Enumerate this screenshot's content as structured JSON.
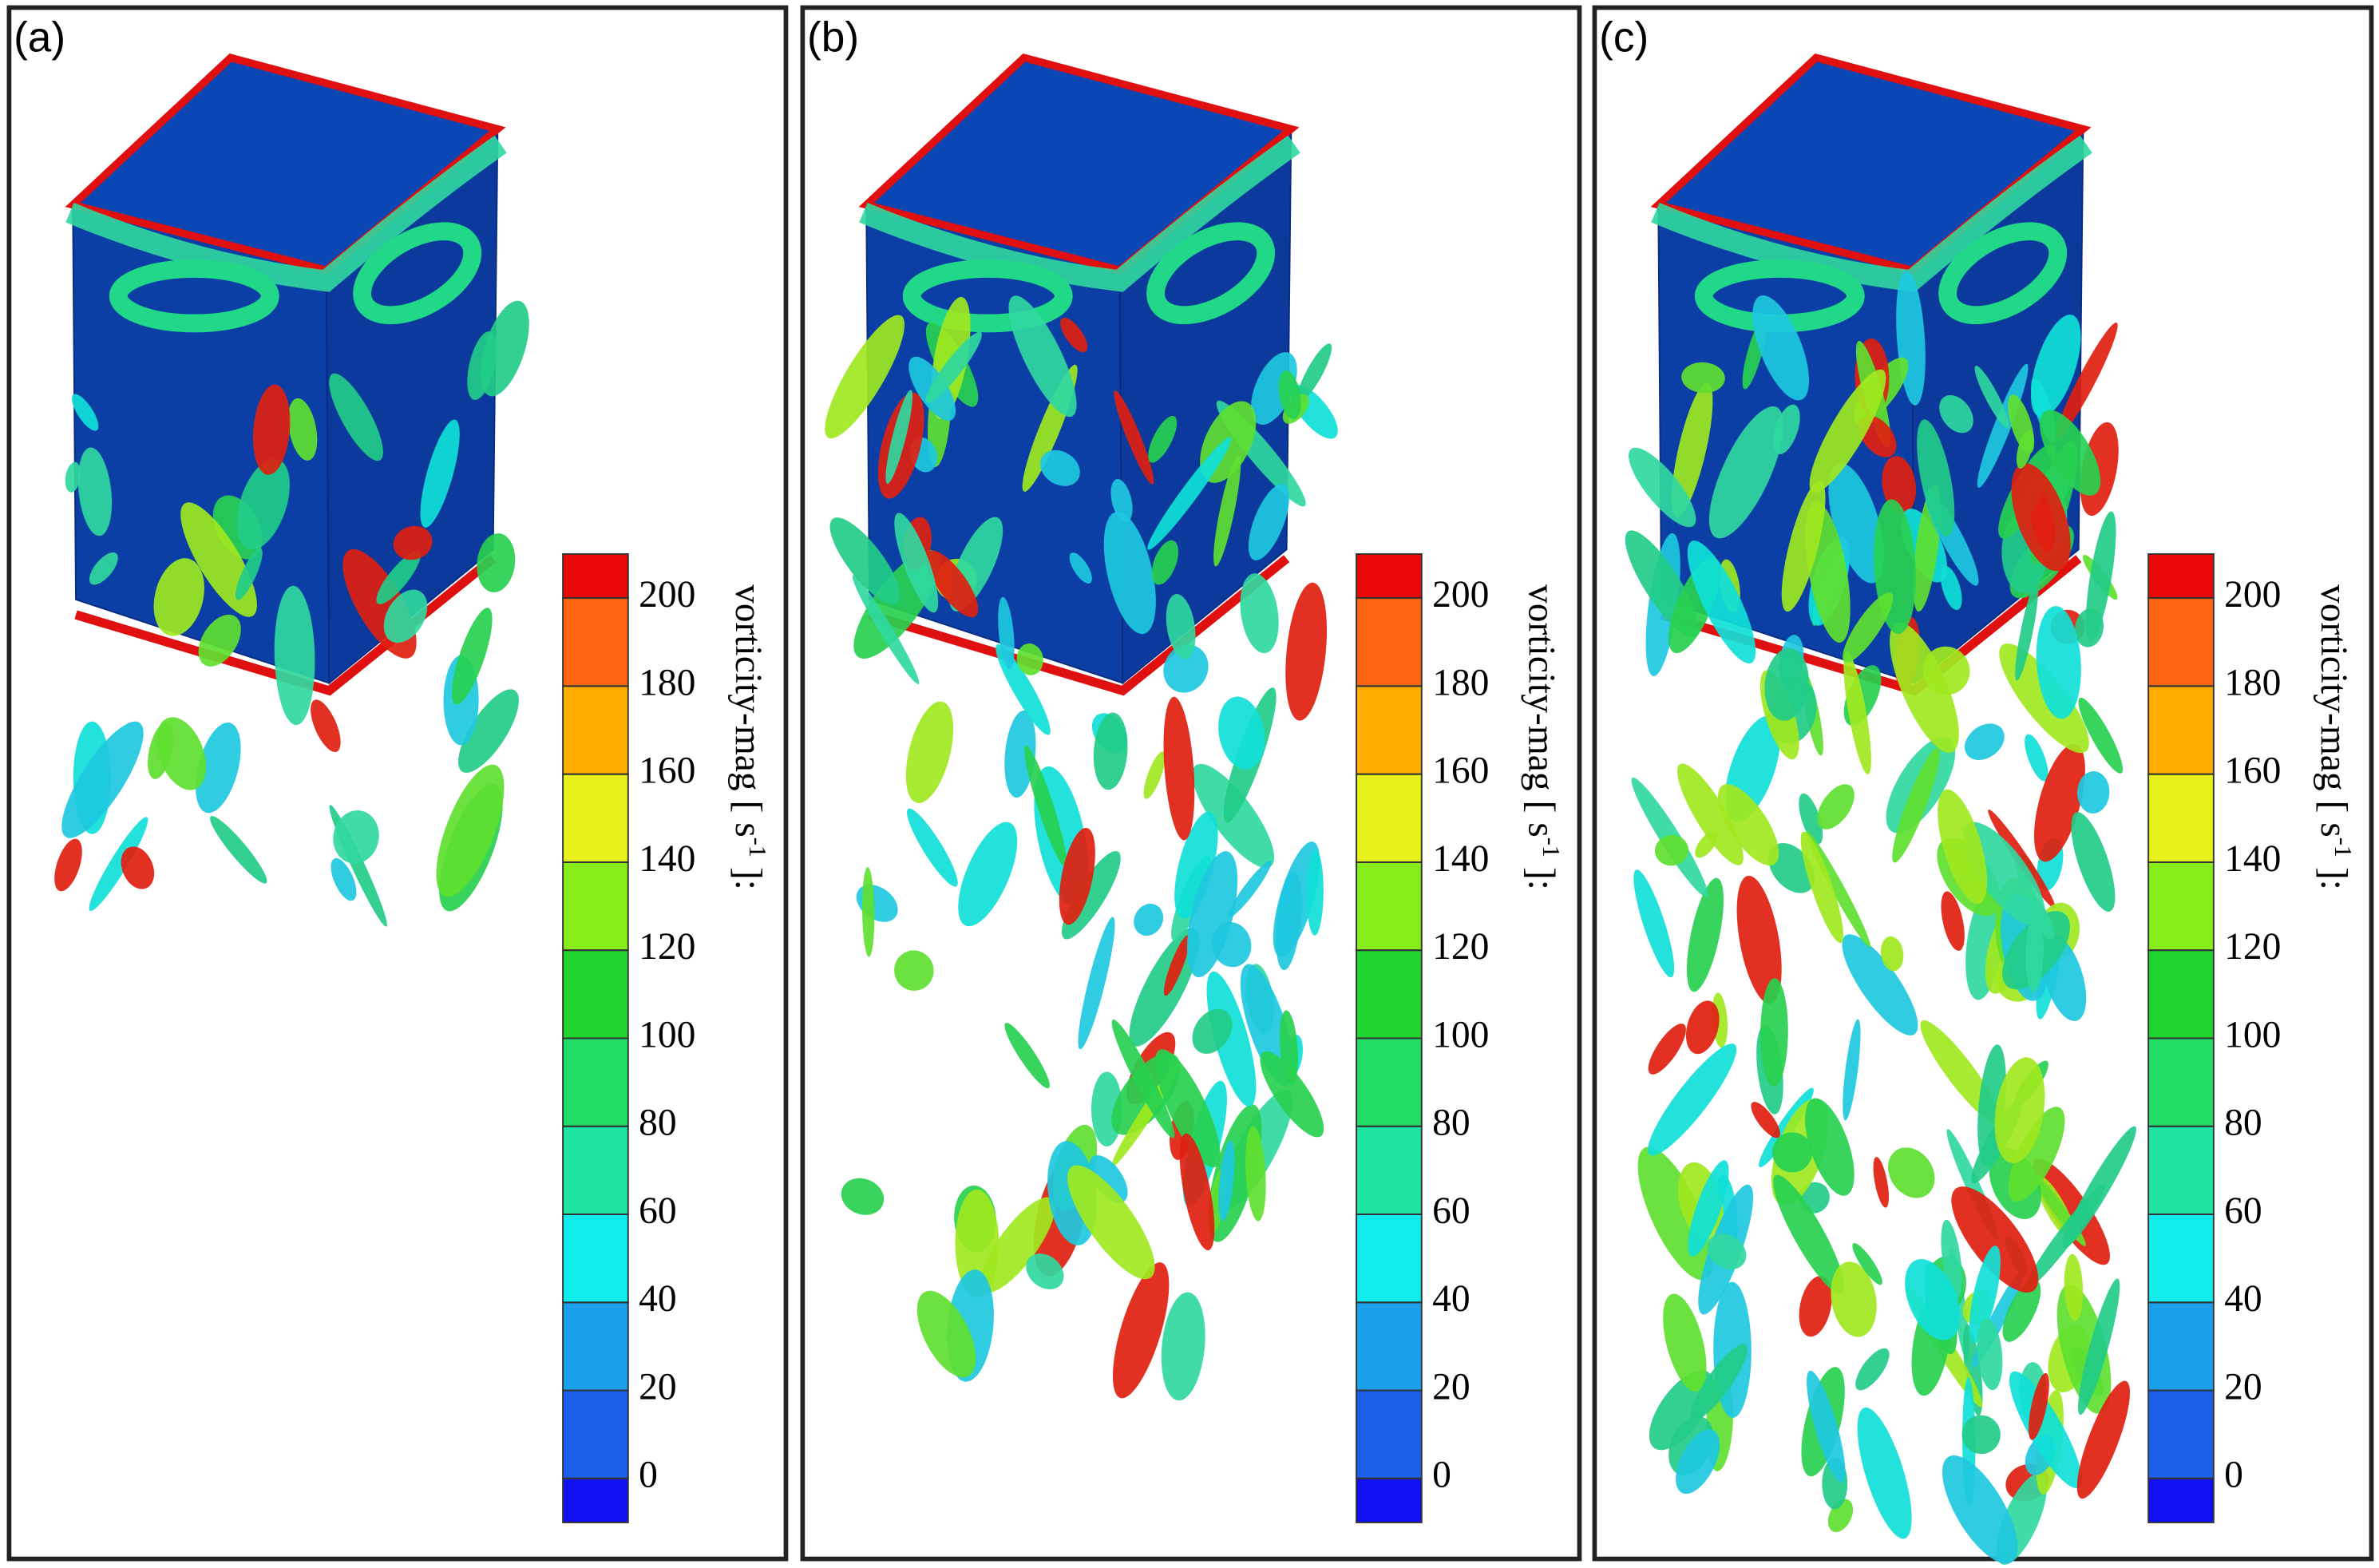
{
  "panels": [
    {
      "label": "(a)"
    },
    {
      "label": "(b)"
    },
    {
      "label": "(c)"
    }
  ],
  "colorbar": {
    "title": "vorticity-mag [ s",
    "title_sup": "-1",
    "title_end": " ]:",
    "ticks": [
      0,
      20,
      40,
      60,
      80,
      100,
      120,
      140,
      160,
      180,
      200
    ],
    "colors": [
      "#1010f0",
      "#1a5ee8",
      "#1aa0ec",
      "#10ecec",
      "#20e4a4",
      "#22dc66",
      "#22d42e",
      "#86ec1a",
      "#e6f01a",
      "#ffae00",
      "#ff6410",
      "#e80808"
    ]
  }
}
